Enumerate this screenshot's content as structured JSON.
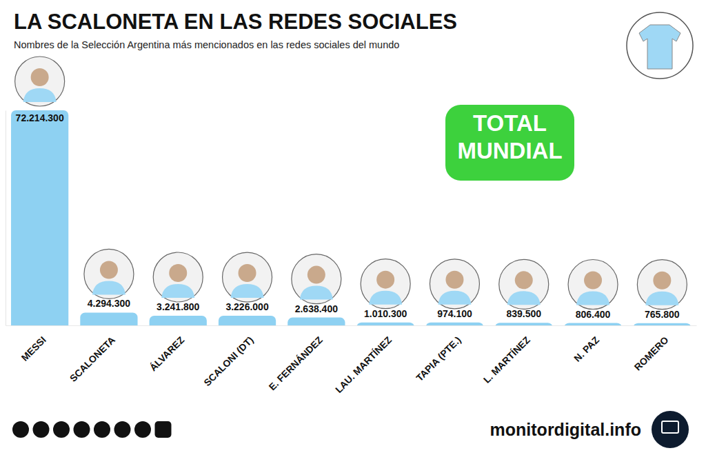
{
  "chart_data": {
    "type": "bar",
    "title": "LA SCALONETA EN LAS REDES SOCIALES",
    "subtitle": "Nombres de la Selección Argentina más mencionados en las redes sociales del mundo",
    "annotations": [
      "TOTAL MUNDIAL"
    ],
    "source": "monitordigital.info",
    "categories": [
      "MESSI",
      "SCALONETA",
      "ÁLVAREZ",
      "SCALONI (DT)",
      "E. FERNÁNDEZ",
      "LAU. MARTÍNEZ",
      "TAPIA (PTE.)",
      "L. MARTÍNEZ",
      "N. PAZ",
      "ROMERO"
    ],
    "values": [
      72214300,
      4294300,
      3241800,
      3226000,
      2638400,
      1010300,
      974100,
      839500,
      806400,
      765800
    ],
    "value_labels": [
      "72.214.300",
      "4.294.300",
      "3.241.800",
      "3.226.000",
      "2.638.400",
      "1.010.300",
      "974.100",
      "839.500",
      "806.400",
      "765.800"
    ],
    "color": "#8ed1f2",
    "ylim": [
      0,
      72214300
    ],
    "tick_labels": "x",
    "data_labels": true
  }
}
